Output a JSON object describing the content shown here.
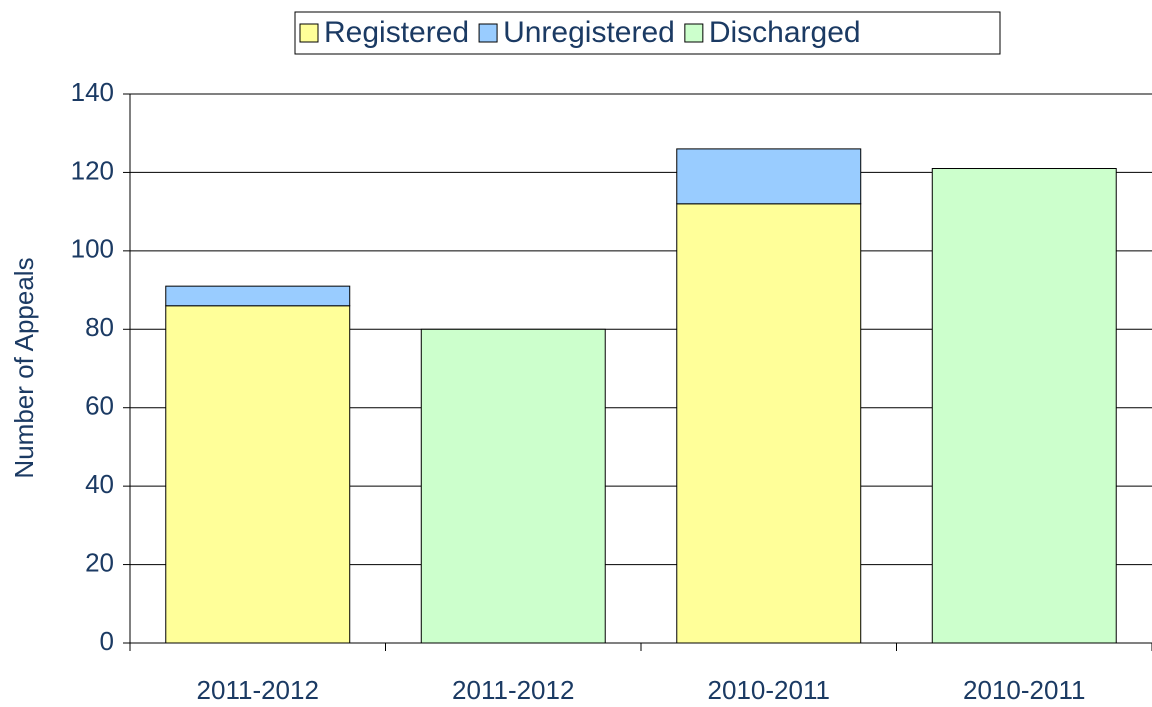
{
  "chart_data": {
    "type": "stacked_bar",
    "y_label": "Number of Appeals",
    "categories": [
      "2011-2012",
      "2011-2012",
      "2010-2011",
      "2010-2011"
    ],
    "series": [
      {
        "name": "Registered",
        "color": "#ffff99",
        "values": [
          86,
          null,
          112,
          null
        ]
      },
      {
        "name": "Unregistered",
        "color": "#99ccff",
        "values": [
          5,
          null,
          14,
          null
        ]
      },
      {
        "name": "Discharged",
        "color": "#ccffcc",
        "values": [
          null,
          80,
          null,
          121
        ]
      }
    ],
    "ylim": [
      0,
      140
    ],
    "yticks": [
      0,
      20,
      40,
      60,
      80,
      100,
      120,
      140
    ],
    "grid": true,
    "legend": "top"
  }
}
